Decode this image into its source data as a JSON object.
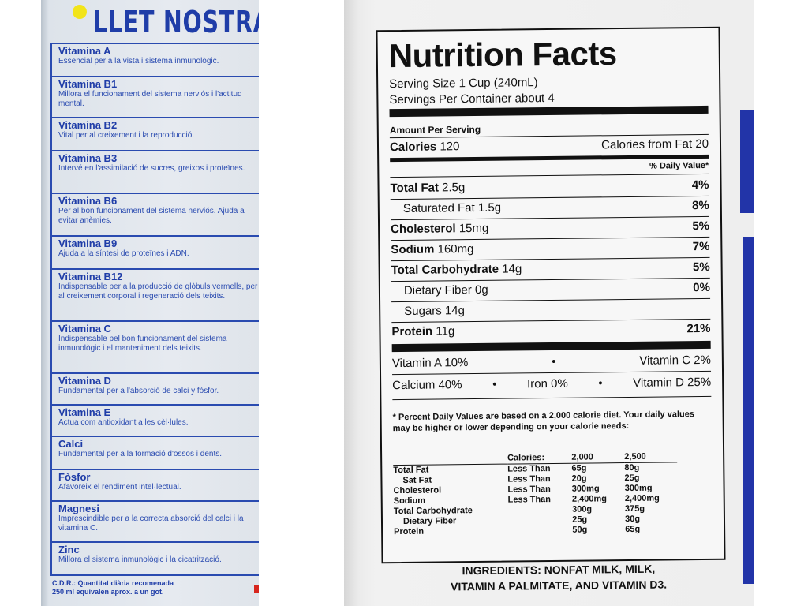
{
  "left_carton": {
    "brand": "LLET NOSTRA",
    "items": [
      {
        "name": "Vitamina A",
        "desc": "Essencial per a la vista i sistema inmunològic."
      },
      {
        "name": "Vitamina B1",
        "desc": "Millora el funcionament del sistema nerviós i l'actitud mental."
      },
      {
        "name": "Vitamina B2",
        "desc": "Vital per al creixement i la reproducció."
      },
      {
        "name": "Vitamina B3",
        "desc": "Intervé en l'assimilació de sucres, greixos i proteïnes."
      },
      {
        "name": "Vitamina B6",
        "desc": "Per al bon funcionament del sistema nerviós. Ajuda a evitar anèmies."
      },
      {
        "name": "Vitamina B9",
        "desc": "Ajuda a la síntesi de proteïnes i ADN."
      },
      {
        "name": "Vitamina B12",
        "desc": "Indispensable per a la producció de glòbuls vermells, per al creixement corporal i regeneració dels teixits."
      },
      {
        "name": "Vitamina C",
        "desc": "Indispensable pel bon funcionament del sistema inmunològic i el manteniment dels teixits."
      },
      {
        "name": "Vitamina D",
        "desc": "Fundamental per a l'absorció de calci y fòsfor."
      },
      {
        "name": "Vitamina E",
        "desc": "Actua com antioxidant a les cèl·lules."
      },
      {
        "name": "Calci",
        "desc": "Fundamental per a la formació d'ossos i dents."
      },
      {
        "name": "Fòsfor",
        "desc": "Afavoreix el rendiment intel·lectual."
      },
      {
        "name": "Magnesi",
        "desc": "Imprescindible per a la correcta absorció del calci i la vitamina C."
      },
      {
        "name": "Zinc",
        "desc": "Millora el sistema inmunològic i la cicatrització."
      }
    ],
    "cdr_line1": "C.D.R.: Quantitat diària recomenada",
    "cdr_line2": "250 ml equivalen aprox. a un got."
  },
  "nutrition": {
    "title": "Nutrition Facts",
    "serving_size": "Serving Size 1 Cup (240mL)",
    "servings_per_container": "Servings Per Container about 4",
    "amount_per_serving": "Amount Per Serving",
    "calories_label": "Calories",
    "calories_value": "120",
    "calories_fat_label": "Calories from Fat",
    "calories_fat_value": "20",
    "dv_header": "% Daily Value*",
    "rows": [
      {
        "label": "Total Fat",
        "amount": "2.5g",
        "pct": "4%"
      },
      {
        "label": "Saturated Fat",
        "amount": "1.5g",
        "pct": "8%"
      },
      {
        "label": "Cholesterol",
        "amount": "15mg",
        "pct": "5%"
      },
      {
        "label": "Sodium",
        "amount": "160mg",
        "pct": "7%"
      },
      {
        "label": "Total Carbohydrate",
        "amount": "14g",
        "pct": "5%"
      },
      {
        "label": "Dietary Fiber",
        "amount": "0g",
        "pct": "0%"
      },
      {
        "label": "Sugars",
        "amount": "14g",
        "pct": ""
      },
      {
        "label": "Protein",
        "amount": "11g",
        "pct": "21%"
      }
    ],
    "vitamin_a": "Vitamin A 10%",
    "vitamin_c": "Vitamin C 2%",
    "calcium": "Calcium 40%",
    "iron": "Iron 0%",
    "vitamin_d": "Vitamin D 25%",
    "bullet": "•",
    "footnote": "* Percent Daily Values are based on a 2,000 calorie diet. Your daily values may be higher or lower depending on your calorie needs:",
    "dv_table": {
      "header": [
        "",
        "Calories:",
        "2,000",
        "2,500"
      ],
      "rows": [
        [
          "Total Fat",
          "Less Than",
          "65g",
          "80g"
        ],
        [
          "Sat Fat",
          "Less Than",
          "20g",
          "25g"
        ],
        [
          "Cholesterol",
          "Less Than",
          "300mg",
          "300mg"
        ],
        [
          "Sodium",
          "Less Than",
          "2,400mg",
          "2,400mg"
        ],
        [
          "Total Carbohydrate",
          "",
          "300g",
          "375g"
        ],
        [
          "Dietary Fiber",
          "",
          "25g",
          "30g"
        ],
        [
          "Protein",
          "",
          "50g",
          "65g"
        ]
      ]
    },
    "ingredients_line1": "INGREDIENTS: NONFAT MILK, MILK,",
    "ingredients_line2": "VITAMIN A PALMITATE, AND VITAMIN D3."
  }
}
